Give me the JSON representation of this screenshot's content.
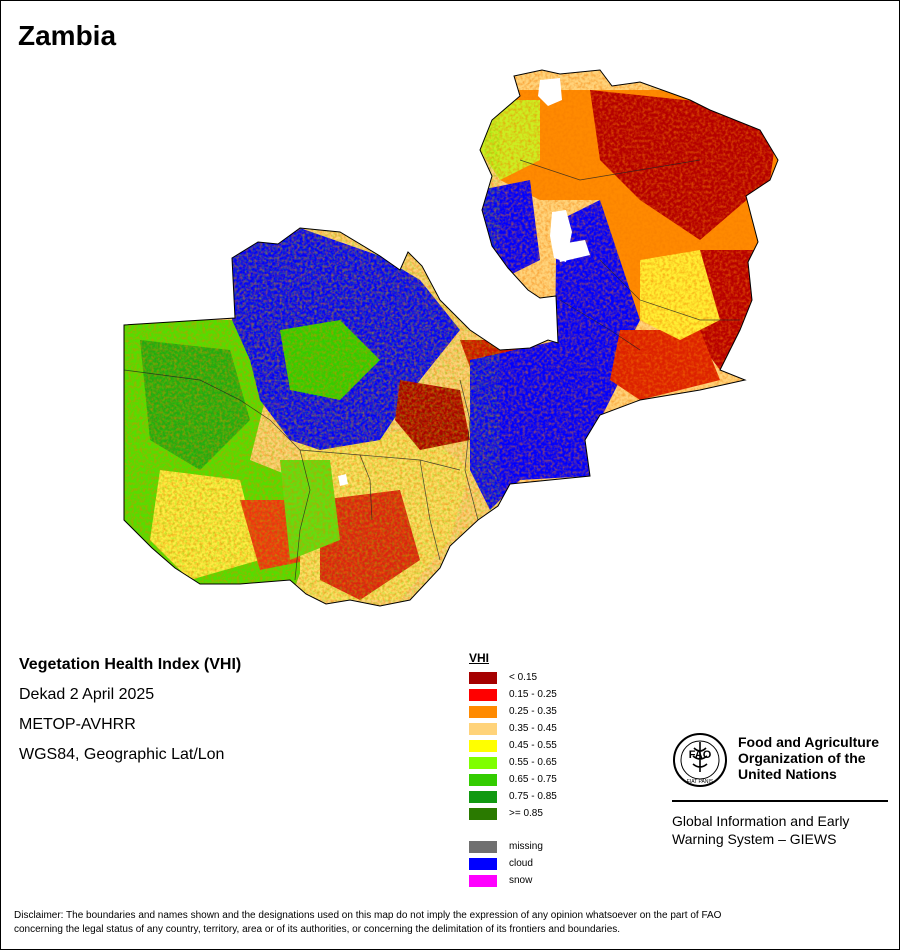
{
  "map": {
    "country": "Zambia"
  },
  "info": {
    "index_name": "Vegetation Health Index (VHI)",
    "period": "Dekad 2 April 2025",
    "sensor": "METOP-AVHRR",
    "projection": "WGS84, Geographic Lat/Lon"
  },
  "legend": {
    "title": "VHI",
    "classes": [
      {
        "label": "< 0.15",
        "color": "#a50000"
      },
      {
        "label": "0.15 - 0.25",
        "color": "#ff0000"
      },
      {
        "label": "0.25 - 0.35",
        "color": "#ff8a00"
      },
      {
        "label": "0.35 - 0.45",
        "color": "#ffd37a"
      },
      {
        "label": "0.45 - 0.55",
        "color": "#ffff00"
      },
      {
        "label": "0.55 - 0.65",
        "color": "#7fff00"
      },
      {
        "label": "0.65 - 0.75",
        "color": "#33cc00"
      },
      {
        "label": "0.75 - 0.85",
        "color": "#119911"
      },
      {
        "label": ">= 0.85",
        "color": "#2a7a00"
      }
    ],
    "special": [
      {
        "label": "missing",
        "color": "#707070"
      },
      {
        "label": "cloud",
        "color": "#0000ff"
      },
      {
        "label": "snow",
        "color": "#ff00ff"
      }
    ]
  },
  "organization": {
    "emblem_text": "FAO",
    "emblem_motto": "FIAT PANIS",
    "name_line1": "Food and Agriculture",
    "name_line2": "Organization of the",
    "name_line3": "United Nations",
    "system_line1": "Global Information and Early",
    "system_line2": "Warning System – GIEWS"
  },
  "disclaimer": {
    "line1": "Disclaimer: The boundaries and names shown and the designations used on this map do not imply the expression of any opinion whatsoever on the part of FAO",
    "line2": "concerning the legal status of any country, territory, area or of its authorities, or concerning the delimitation of its frontiers and boundaries."
  }
}
